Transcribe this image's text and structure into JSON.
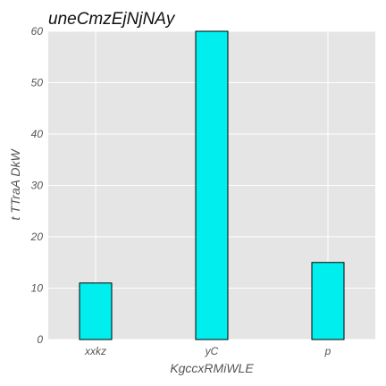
{
  "chart_data": {
    "type": "bar",
    "title": "uneCmzEjNjNAy",
    "xlabel": "KgccxRMiWLE",
    "ylabel": "t  TTraA DkW",
    "categories": [
      "xxkz",
      "yC",
      "p"
    ],
    "values": [
      11,
      60,
      15
    ],
    "ylim": [
      0,
      60
    ],
    "yticks": [
      0,
      10,
      20,
      30,
      40,
      50,
      60
    ],
    "grid": true,
    "bar_color": "#00eeee",
    "background_color": "#e5e5e5"
  }
}
